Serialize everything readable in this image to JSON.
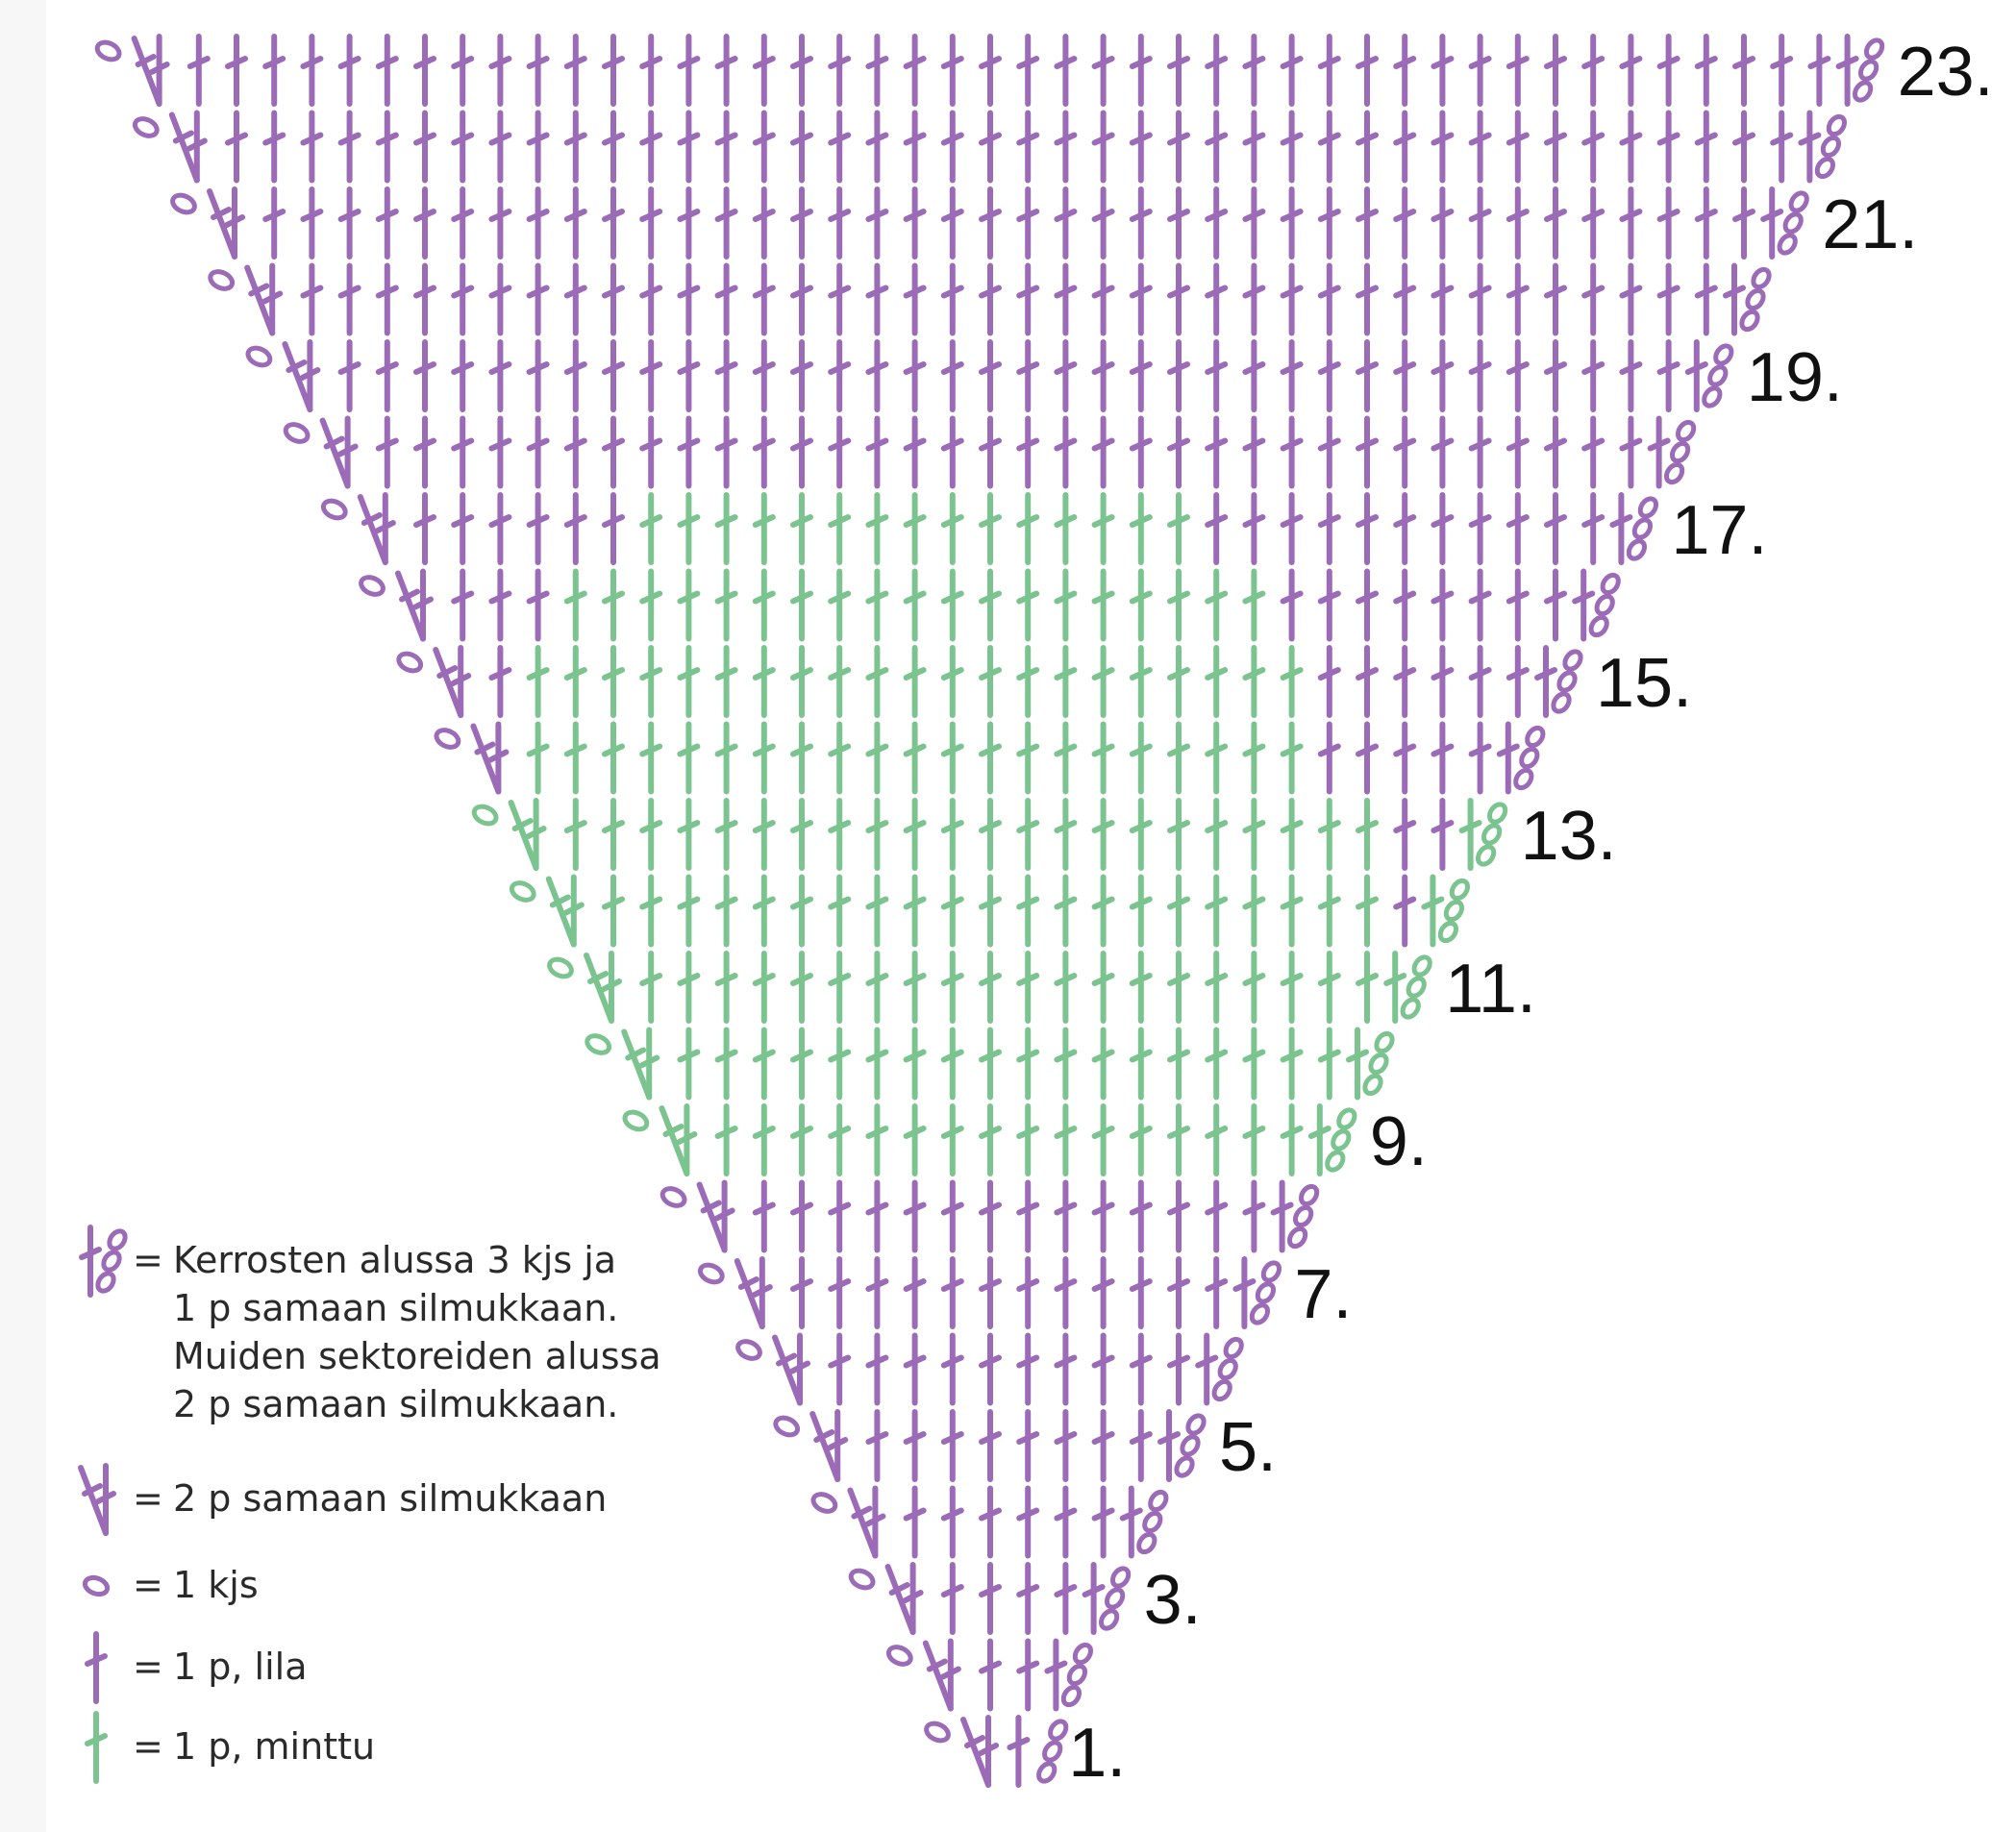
{
  "colors": {
    "lila": "#9b6bb7",
    "minttu": "#7cc48f",
    "text": "#111111"
  },
  "rows": [
    {
      "n": 1,
      "label": "1.",
      "greenStart": null,
      "greenEnd": null
    },
    {
      "n": 2,
      "label": "",
      "greenStart": null,
      "greenEnd": null
    },
    {
      "n": 3,
      "label": "3.",
      "greenStart": null,
      "greenEnd": null
    },
    {
      "n": 4,
      "label": "",
      "greenStart": null,
      "greenEnd": null
    },
    {
      "n": 5,
      "label": "5.",
      "greenStart": null,
      "greenEnd": null
    },
    {
      "n": 6,
      "label": "",
      "greenStart": null,
      "greenEnd": null
    },
    {
      "n": 7,
      "label": "7.",
      "greenStart": null,
      "greenEnd": null
    },
    {
      "n": 8,
      "label": "",
      "greenStart": null,
      "greenEnd": null
    },
    {
      "n": 9,
      "label": "9.",
      "greenStart": -1,
      "greenEnd": 18
    },
    {
      "n": 10,
      "label": "",
      "greenStart": -1,
      "greenEnd": 19
    },
    {
      "n": 11,
      "label": "11.",
      "greenStart": -1,
      "greenEnd": 20
    },
    {
      "n": 12,
      "label": "",
      "greenStart": -1,
      "greenEnd": 21
    },
    {
      "n": 13,
      "label": "13.",
      "greenStart": -1,
      "greenEnd": 22
    },
    {
      "n": 14,
      "label": "",
      "greenStart": 1,
      "greenEnd": 21
    },
    {
      "n": 15,
      "label": "15.",
      "greenStart": 2,
      "greenEnd": 22
    },
    {
      "n": 16,
      "label": "",
      "greenStart": 4,
      "greenEnd": 22
    },
    {
      "n": 17,
      "label": "17.",
      "greenStart": 7,
      "greenEnd": 21
    },
    {
      "n": 18,
      "label": "",
      "greenStart": null,
      "greenEnd": null
    },
    {
      "n": 19,
      "label": "19.",
      "greenStart": null,
      "greenEnd": null
    },
    {
      "n": 20,
      "label": "",
      "greenStart": null,
      "greenEnd": null
    },
    {
      "n": 21,
      "label": "21.",
      "greenStart": null,
      "greenEnd": null
    },
    {
      "n": 22,
      "label": "",
      "greenStart": null,
      "greenEnd": null
    },
    {
      "n": 23,
      "label": "23.",
      "greenStart": null,
      "greenEnd": null
    }
  ],
  "legend": [
    {
      "symbol": "start-chain",
      "eq": "=",
      "lines": [
        "Kerrosten alussa 3 kjs ja",
        "1 p samaan silmukkaan.",
        "Muiden sektoreiden alussa",
        "2 p samaan silmukkaan."
      ]
    },
    {
      "symbol": "increase",
      "eq": "=",
      "lines": [
        "2 p samaan silmukkaan"
      ]
    },
    {
      "symbol": "chain",
      "eq": "=",
      "lines": [
        "1 kjs"
      ]
    },
    {
      "symbol": "dc-lila",
      "eq": "=",
      "lines": [
        "1 p, lila"
      ]
    },
    {
      "symbol": "dc-minttu",
      "eq": "=",
      "lines": [
        "1 p, minttu"
      ]
    }
  ]
}
